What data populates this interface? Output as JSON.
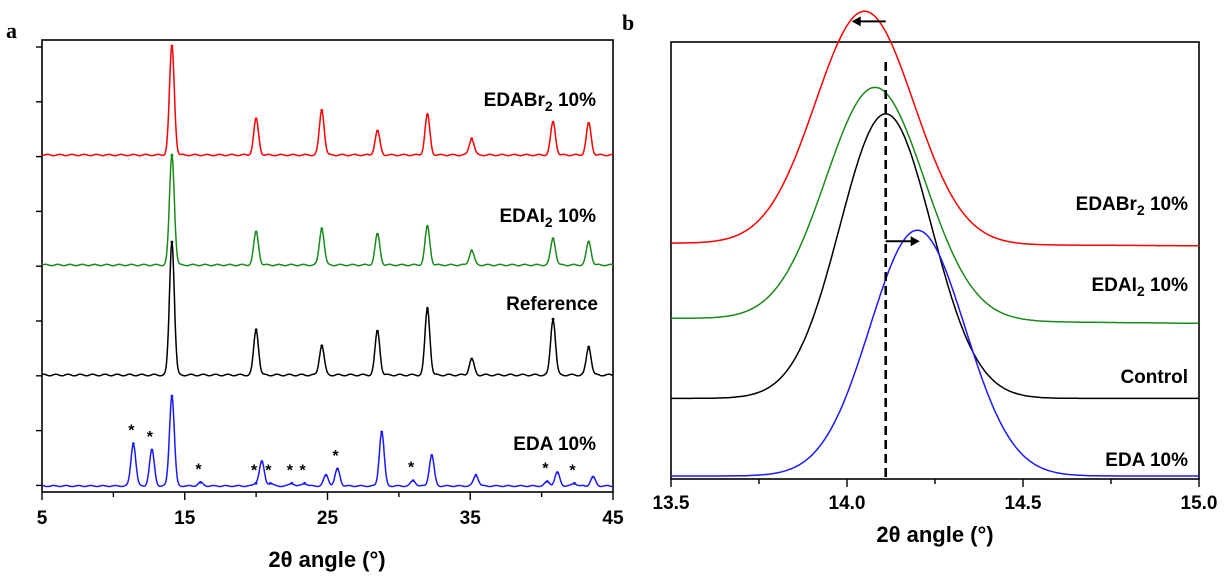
{
  "figure": {
    "panels": [
      "a",
      "b"
    ]
  },
  "chart_data": [
    {
      "panel": "a",
      "type": "line",
      "xlabel": "2θ angle (°)",
      "ylabel": "",
      "xlim": [
        5,
        45
      ],
      "x_ticks": [
        "5",
        "15",
        "25",
        "35",
        "45"
      ],
      "grid": false,
      "marker_symbol": "*",
      "series": [
        {
          "name": "EDABr2 10%",
          "label_main": "EDABr",
          "label_sub": "2",
          "label_suffix": " 10%",
          "color": "#ff0000",
          "peaks": [
            {
              "x": 14.1,
              "h": 1.0
            },
            {
              "x": 20.0,
              "h": 0.33
            },
            {
              "x": 24.6,
              "h": 0.41
            },
            {
              "x": 28.5,
              "h": 0.22
            },
            {
              "x": 32.0,
              "h": 0.37
            },
            {
              "x": 35.1,
              "h": 0.15
            },
            {
              "x": 40.8,
              "h": 0.3
            },
            {
              "x": 43.3,
              "h": 0.29
            }
          ]
        },
        {
          "name": "EDAI2 10%",
          "label_main": "EDAI",
          "label_sub": "2",
          "label_suffix": " 10%",
          "color": "#1a8a1a",
          "peaks": [
            {
              "x": 14.1,
              "h": 1.0
            },
            {
              "x": 20.0,
              "h": 0.3
            },
            {
              "x": 24.6,
              "h": 0.33
            },
            {
              "x": 28.5,
              "h": 0.28
            },
            {
              "x": 32.0,
              "h": 0.35
            },
            {
              "x": 35.1,
              "h": 0.13
            },
            {
              "x": 40.8,
              "h": 0.24
            },
            {
              "x": 43.3,
              "h": 0.21
            }
          ]
        },
        {
          "name": "Reference",
          "label_main": "Reference",
          "label_sub": "",
          "label_suffix": "",
          "color": "#000000",
          "peaks": [
            {
              "x": 14.1,
              "h": 1.0
            },
            {
              "x": 20.0,
              "h": 0.34
            },
            {
              "x": 24.6,
              "h": 0.22
            },
            {
              "x": 28.5,
              "h": 0.33
            },
            {
              "x": 32.0,
              "h": 0.5
            },
            {
              "x": 35.1,
              "h": 0.12
            },
            {
              "x": 40.8,
              "h": 0.42
            },
            {
              "x": 43.3,
              "h": 0.21
            }
          ]
        },
        {
          "name": "EDA 10%",
          "label_main": "EDA 10%",
          "label_sub": "",
          "label_suffix": "",
          "color": "#1a1aff",
          "peaks": [
            {
              "x": 11.4,
              "h": 0.47,
              "star": true
            },
            {
              "x": 12.7,
              "h": 0.4,
              "star": true
            },
            {
              "x": 14.1,
              "h": 1.0
            },
            {
              "x": 16.1,
              "h": 0.04,
              "star": true
            },
            {
              "x": 20.0,
              "h": 0.03,
              "star": true
            },
            {
              "x": 20.4,
              "h": 0.27
            },
            {
              "x": 21.0,
              "h": 0.03,
              "star": true
            },
            {
              "x": 22.5,
              "h": 0.03,
              "star": true
            },
            {
              "x": 23.4,
              "h": 0.03,
              "star": true
            },
            {
              "x": 24.9,
              "h": 0.12
            },
            {
              "x": 25.7,
              "h": 0.19,
              "star": true
            },
            {
              "x": 28.8,
              "h": 0.6
            },
            {
              "x": 31.0,
              "h": 0.06,
              "star": true
            },
            {
              "x": 32.3,
              "h": 0.34
            },
            {
              "x": 35.4,
              "h": 0.12
            },
            {
              "x": 40.4,
              "h": 0.05,
              "star": true
            },
            {
              "x": 41.1,
              "h": 0.15
            },
            {
              "x": 42.3,
              "h": 0.03,
              "star": true
            },
            {
              "x": 43.6,
              "h": 0.1
            }
          ]
        }
      ]
    },
    {
      "panel": "b",
      "type": "line",
      "xlabel": "2θ angle (°)",
      "ylabel": "",
      "xlim": [
        13.5,
        15.0
      ],
      "x_ticks": [
        "13.5",
        "14.0",
        "14.5",
        "15.0"
      ],
      "grid": false,
      "reference_line_x": 14.11,
      "series": [
        {
          "name": "EDABr2 10%",
          "label_main": "EDABr",
          "label_sub": "2",
          "label_suffix": " 10%",
          "color": "#ff0000",
          "center": 14.05,
          "sigma": 0.14,
          "amplitude": 0.9,
          "baseline": 0.9,
          "tail_drop": 0.01
        },
        {
          "name": "EDAI2 10%",
          "label_main": "EDAI",
          "label_sub": "2",
          "label_suffix": " 10%",
          "color": "#1a8a1a",
          "center": 14.08,
          "sigma": 0.14,
          "amplitude": 0.9,
          "baseline": 0.61,
          "tail_drop": 0.02
        },
        {
          "name": "Control",
          "label_main": "Control",
          "label_sub": "",
          "label_suffix": "",
          "color": "#000000",
          "center": 14.11,
          "sigma": 0.13,
          "amplitude": 1.1,
          "baseline": 0.3,
          "tail_drop": 0.0
        },
        {
          "name": "EDA 10%",
          "label_main": "EDA 10%",
          "label_sub": "",
          "label_suffix": "",
          "color": "#1a1aff",
          "center": 14.2,
          "sigma": 0.135,
          "amplitude": 0.95,
          "baseline": 0.0,
          "tail_drop": 0.0
        }
      ],
      "arrows": [
        {
          "series": "EDABr2 10%",
          "direction": "left"
        },
        {
          "series": "EDA 10%",
          "direction": "right"
        }
      ]
    }
  ]
}
